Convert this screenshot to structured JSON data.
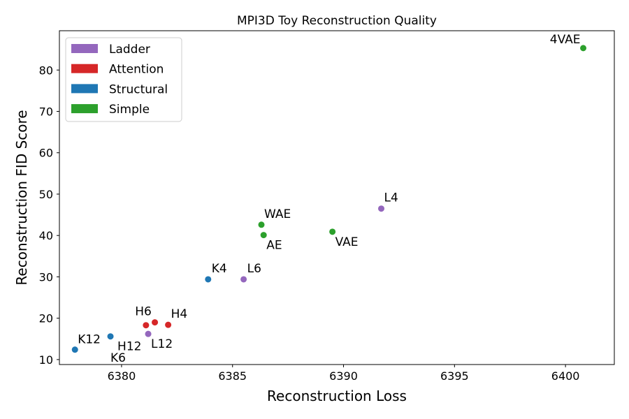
{
  "chart_data": {
    "type": "scatter",
    "title": "MPI3D Toy Reconstruction Quality",
    "xlabel": "Reconstruction Loss",
    "ylabel": "Reconstruction FID Score",
    "xlim": [
      6377.2,
      6402.2
    ],
    "ylim": [
      8.8,
      89.5
    ],
    "xticks": [
      6380,
      6385,
      6390,
      6395,
      6400
    ],
    "yticks": [
      10,
      20,
      30,
      40,
      50,
      60,
      70,
      80
    ],
    "grid": false,
    "legend_position": "top-left",
    "groups": [
      {
        "name": "Ladder",
        "color": "#9467bd"
      },
      {
        "name": "Attention",
        "color": "#d62728"
      },
      {
        "name": "Structural",
        "color": "#1f77b4"
      },
      {
        "name": "Simple",
        "color": "#2ca02c"
      }
    ],
    "points": [
      {
        "label": "4VAE",
        "x": 6400.8,
        "y": 85.3,
        "group": "Simple"
      },
      {
        "label": "L4",
        "x": 6391.7,
        "y": 46.5,
        "group": "Ladder"
      },
      {
        "label": "WAE",
        "x": 6386.3,
        "y": 42.6,
        "group": "Simple"
      },
      {
        "label": "AE",
        "x": 6386.4,
        "y": 40.1,
        "group": "Simple"
      },
      {
        "label": "VAE",
        "x": 6389.5,
        "y": 40.9,
        "group": "Simple"
      },
      {
        "label": "K4",
        "x": 6383.9,
        "y": 29.4,
        "group": "Structural"
      },
      {
        "label": "L6",
        "x": 6385.5,
        "y": 29.4,
        "group": "Ladder"
      },
      {
        "label": "H6",
        "x": 6381.1,
        "y": 18.3,
        "group": "Attention"
      },
      {
        "label": "",
        "x": 6381.5,
        "y": 19.0,
        "group": "Attention"
      },
      {
        "label": "H4",
        "x": 6382.1,
        "y": 18.4,
        "group": "Attention"
      },
      {
        "label": "L12",
        "x": 6381.2,
        "y": 16.2,
        "group": "Ladder"
      },
      {
        "label": "H12",
        "x": 6379.5,
        "y": 15.6,
        "group": "Structural"
      },
      {
        "label": "K12",
        "x": 6377.9,
        "y": 12.4,
        "group": "Structural"
      },
      {
        "label": "K6",
        "x": null,
        "y": null,
        "group": "Structural"
      }
    ]
  }
}
